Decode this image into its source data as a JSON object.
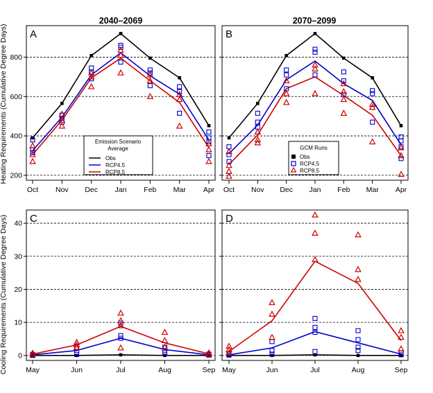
{
  "chart_data": [
    {
      "type": "line",
      "panel_label": "A",
      "column_title": "2040–2069",
      "ylabel": "Heating Requirements (Cumulative Degree Days)",
      "categories": [
        "Oct",
        "Nov",
        "Dec",
        "Jan",
        "Feb",
        "Mar",
        "Apr"
      ],
      "ylim": [
        175,
        960
      ],
      "yticks": [
        200,
        400,
        600,
        800
      ],
      "grid": "dashed-horizontal",
      "series": [
        {
          "name": "Obs",
          "color": "#000000",
          "values": [
            390,
            565,
            808,
            920,
            795,
            695,
            452
          ]
        },
        {
          "name": "RCP4.5",
          "color": "#0000cc",
          "values": [
            325,
            495,
            710,
            822,
            705,
            612,
            380
          ]
        },
        {
          "name": "RCP8.5",
          "color": "#cc0000",
          "values": [
            305,
            480,
            695,
            795,
            680,
            570,
            340
          ]
        }
      ],
      "gcm_runs": [
        {
          "scenario": "Obs",
          "marker": "filled-square",
          "color": "#000000",
          "points": [
            [
              0,
              390
            ],
            [
              1,
              565
            ],
            [
              2,
              808
            ],
            [
              3,
              920
            ],
            [
              4,
              795
            ],
            [
              5,
              695
            ],
            [
              6,
              452
            ]
          ]
        },
        {
          "scenario": "RCP4.5",
          "marker": "open-square",
          "color": "#0000cc",
          "points": [
            [
              0,
              330
            ],
            [
              0,
              315
            ],
            [
              0,
              380
            ],
            [
              1,
              505
            ],
            [
              1,
              470
            ],
            [
              1,
              490
            ],
            [
              2,
              745
            ],
            [
              2,
              725
            ],
            [
              2,
              690
            ],
            [
              3,
              850
            ],
            [
              3,
              860
            ],
            [
              3,
              775
            ],
            [
              4,
              735
            ],
            [
              4,
              720
            ],
            [
              4,
              655
            ],
            [
              5,
              650
            ],
            [
              5,
              625
            ],
            [
              5,
              515
            ],
            [
              6,
              420
            ],
            [
              6,
              390
            ],
            [
              6,
              370
            ],
            [
              6,
              300
            ]
          ]
        },
        {
          "scenario": "RCP8.5",
          "marker": "open-triangle",
          "color": "#cc0000",
          "points": [
            [
              0,
              350
            ],
            [
              0,
              305
            ],
            [
              0,
              270
            ],
            [
              1,
              510
            ],
            [
              1,
              480
            ],
            [
              1,
              450
            ],
            [
              2,
              720
            ],
            [
              2,
              700
            ],
            [
              2,
              650
            ],
            [
              3,
              835
            ],
            [
              3,
              810
            ],
            [
              3,
              720
            ],
            [
              4,
              710
            ],
            [
              4,
              680
            ],
            [
              4,
              600
            ],
            [
              5,
              610
            ],
            [
              5,
              585
            ],
            [
              5,
              450
            ],
            [
              6,
              360
            ],
            [
              6,
              330
            ],
            [
              6,
              270
            ]
          ]
        }
      ],
      "legend": {
        "title": "Emission Scenario",
        "subtitle": "Average",
        "entries": [
          "Obs",
          "RCP4.5",
          "RCP8.5"
        ]
      }
    },
    {
      "type": "line",
      "panel_label": "B",
      "column_title": "2070–2099",
      "categories": [
        "Oct",
        "Nov",
        "Dec",
        "Jan",
        "Feb",
        "Mar",
        "Apr"
      ],
      "ylim": [
        175,
        960
      ],
      "yticks": [
        200,
        400,
        600,
        800
      ],
      "grid": "dashed-horizontal",
      "series": [
        {
          "name": "Obs",
          "color": "#000000",
          "values": [
            390,
            565,
            808,
            920,
            795,
            695,
            452
          ]
        },
        {
          "name": "RCP4.5",
          "color": "#0000cc",
          "values": [
            310,
            455,
            685,
            780,
            665,
            580,
            355
          ]
        },
        {
          "name": "RCP8.5",
          "color": "#cc0000",
          "values": [
            255,
            405,
            640,
            700,
            605,
            505,
            300
          ]
        }
      ],
      "gcm_runs": [
        {
          "scenario": "Obs",
          "marker": "filled-square",
          "color": "#000000",
          "points": [
            [
              0,
              390
            ],
            [
              1,
              565
            ],
            [
              2,
              808
            ],
            [
              3,
              920
            ],
            [
              4,
              795
            ],
            [
              5,
              695
            ],
            [
              6,
              452
            ]
          ]
        },
        {
          "scenario": "RCP4.5",
          "marker": "open-square",
          "color": "#0000cc",
          "points": [
            [
              0,
              345
            ],
            [
              0,
              305
            ],
            [
              0,
              270
            ],
            [
              1,
              515
            ],
            [
              1,
              470
            ],
            [
              1,
              445
            ],
            [
              2,
              735
            ],
            [
              2,
              710
            ],
            [
              2,
              640
            ],
            [
              3,
              840
            ],
            [
              3,
              825
            ],
            [
              3,
              710
            ],
            [
              4,
              725
            ],
            [
              4,
              680
            ],
            [
              4,
              610
            ],
            [
              5,
              630
            ],
            [
              5,
              615
            ],
            [
              5,
              470
            ],
            [
              6,
              395
            ],
            [
              6,
              375
            ],
            [
              6,
              345
            ],
            [
              6,
              285
            ]
          ]
        },
        {
          "scenario": "RCP8.5",
          "marker": "open-triangle",
          "color": "#cc0000",
          "points": [
            [
              0,
              320
            ],
            [
              0,
              250
            ],
            [
              0,
              220
            ],
            [
              0,
              195
            ],
            [
              1,
              420
            ],
            [
              1,
              380
            ],
            [
              1,
              365
            ],
            [
              2,
              680
            ],
            [
              2,
              615
            ],
            [
              2,
              570
            ],
            [
              3,
              760
            ],
            [
              3,
              740
            ],
            [
              3,
              615
            ],
            [
              4,
              665
            ],
            [
              4,
              625
            ],
            [
              4,
              585
            ],
            [
              4,
              515
            ],
            [
              5,
              560
            ],
            [
              5,
              545
            ],
            [
              5,
              370
            ],
            [
              6,
              340
            ],
            [
              6,
              300
            ],
            [
              6,
              205
            ]
          ]
        }
      ],
      "legend": {
        "title": "GCM Runs",
        "entries": [
          "Obs",
          "RCP4.5",
          "RCP8.5"
        ]
      }
    },
    {
      "type": "line",
      "panel_label": "C",
      "ylabel": "Cooling Requirements (Cumulative Degree Days)",
      "categories": [
        "May",
        "Jun",
        "Jul",
        "Aug",
        "Sep"
      ],
      "ylim": [
        -1.5,
        44
      ],
      "yticks": [
        0,
        10,
        20,
        30,
        40
      ],
      "grid": "dashed-horizontal",
      "series": [
        {
          "name": "Obs",
          "color": "#000000",
          "values": [
            0,
            0,
            0.2,
            0,
            0
          ]
        },
        {
          "name": "RCP4.5",
          "color": "#0000cc",
          "values": [
            0.2,
            1.5,
            5.2,
            1.8,
            0.2
          ]
        },
        {
          "name": "RCP8.5",
          "color": "#cc0000",
          "values": [
            0.4,
            3.2,
            8.8,
            3.8,
            0.5
          ]
        }
      ],
      "gcm_runs": [
        {
          "scenario": "Obs",
          "marker": "filled-square",
          "color": "#000000",
          "points": [
            [
              0,
              0
            ],
            [
              1,
              0
            ],
            [
              2,
              0.2
            ],
            [
              3,
              0
            ],
            [
              4,
              0
            ]
          ]
        },
        {
          "scenario": "RCP4.5",
          "marker": "open-square",
          "color": "#0000cc",
          "points": [
            [
              0,
              0.3
            ],
            [
              0,
              0
            ],
            [
              1,
              2.5
            ],
            [
              1,
              1.0
            ],
            [
              1,
              0.3
            ],
            [
              2,
              9.8
            ],
            [
              2,
              6.0
            ],
            [
              2,
              5.2
            ],
            [
              3,
              2.5
            ],
            [
              3,
              1.5
            ],
            [
              3,
              0.8
            ],
            [
              4,
              0.4
            ],
            [
              4,
              0.1
            ]
          ]
        },
        {
          "scenario": "RCP8.5",
          "marker": "open-triangle",
          "color": "#cc0000",
          "points": [
            [
              0,
              0.7
            ],
            [
              0,
              0.2
            ],
            [
              1,
              4.0
            ],
            [
              1,
              3.2
            ],
            [
              1,
              2.4
            ],
            [
              2,
              12.8
            ],
            [
              2,
              10.5
            ],
            [
              2,
              9.0
            ],
            [
              2,
              2.3
            ],
            [
              3,
              7.0
            ],
            [
              3,
              4.5
            ],
            [
              3,
              2.5
            ],
            [
              4,
              0.8
            ],
            [
              4,
              0.3
            ]
          ]
        }
      ]
    },
    {
      "type": "line",
      "panel_label": "D",
      "categories": [
        "May",
        "Jun",
        "Jul",
        "Aug",
        "Sep"
      ],
      "ylim": [
        -1.5,
        44
      ],
      "yticks": [
        0,
        10,
        20,
        30,
        40
      ],
      "grid": "dashed-horizontal",
      "series": [
        {
          "name": "Obs",
          "color": "#000000",
          "values": [
            0,
            0,
            0.2,
            0,
            0
          ]
        },
        {
          "name": "RCP4.5",
          "color": "#0000cc",
          "values": [
            0.2,
            2.3,
            7.2,
            3.8,
            0.4
          ]
        },
        {
          "name": "RCP8.5",
          "color": "#cc0000",
          "values": [
            1.2,
            10.5,
            28.5,
            21.8,
            4.5
          ]
        }
      ],
      "gcm_runs": [
        {
          "scenario": "Obs",
          "marker": "filled-square",
          "color": "#000000",
          "points": [
            [
              0,
              0
            ],
            [
              1,
              0
            ],
            [
              2,
              0.2
            ],
            [
              3,
              0
            ],
            [
              4,
              0
            ]
          ]
        },
        {
          "scenario": "RCP4.5",
          "marker": "open-square",
          "color": "#0000cc",
          "points": [
            [
              0,
              0.5
            ],
            [
              0,
              0.1
            ],
            [
              1,
              4.2
            ],
            [
              1,
              1.5
            ],
            [
              1,
              0.4
            ],
            [
              2,
              11.2
            ],
            [
              2,
              8.5
            ],
            [
              2,
              7.0
            ],
            [
              2,
              1.2
            ],
            [
              3,
              7.5
            ],
            [
              3,
              4.8
            ],
            [
              3,
              2.5
            ],
            [
              3,
              1.5
            ],
            [
              4,
              0.8
            ],
            [
              4,
              0.2
            ]
          ]
        },
        {
          "scenario": "RCP8.5",
          "marker": "open-triangle",
          "color": "#cc0000",
          "points": [
            [
              0,
              2.8
            ],
            [
              0,
              1.8
            ],
            [
              0,
              0.8
            ],
            [
              1,
              16.0
            ],
            [
              1,
              12.5
            ],
            [
              1,
              5.5
            ],
            [
              2,
              42.5
            ],
            [
              2,
              37.0
            ],
            [
              2,
              29.0
            ],
            [
              3,
              36.5
            ],
            [
              3,
              26.0
            ],
            [
              3,
              23.0
            ],
            [
              4,
              7.5
            ],
            [
              4,
              5.5
            ],
            [
              4,
              2.0
            ]
          ]
        }
      ]
    }
  ]
}
